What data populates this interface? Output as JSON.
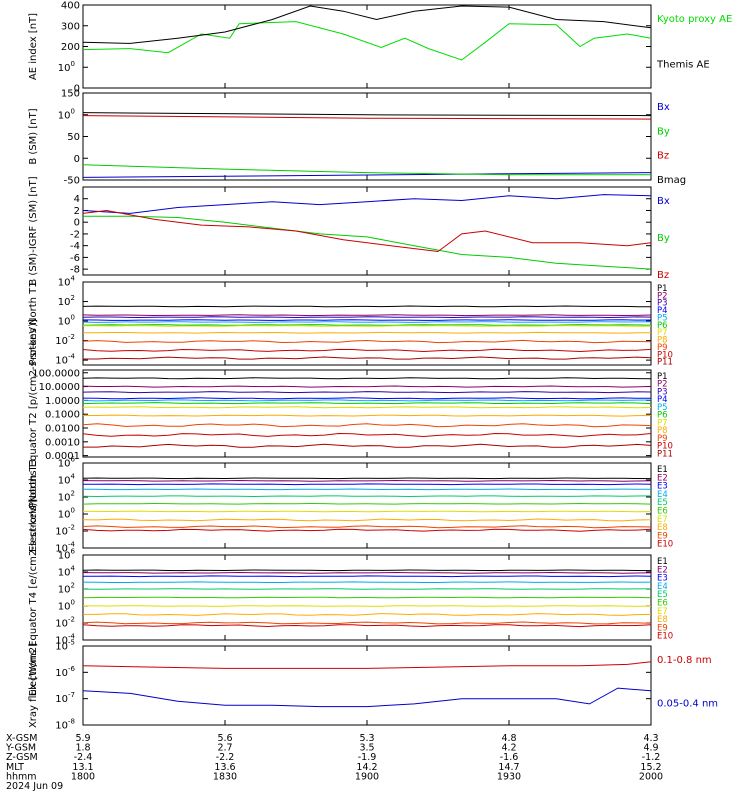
{
  "time_axis": {
    "start": "18:00",
    "end": "20:00",
    "date_label": "2024 Jun 09",
    "ticks": [
      "18:00",
      "18:30",
      "19:00",
      "19:30",
      "20:00"
    ]
  },
  "chart_data": [
    {
      "type": "line",
      "ylabel": "AE index [nT]",
      "ylim": [
        0,
        400
      ],
      "scale": "linear",
      "yticks": [
        "0",
        "100",
        "200",
        "300",
        "400"
      ],
      "series": [
        {
          "name": "Kyoto proxy AE",
          "color": "#00dd00",
          "t": [
            "18:00",
            "18:10",
            "18:18",
            "18:25",
            "18:31",
            "18:33",
            "18:45",
            "18:55",
            "19:03",
            "19:08",
            "19:13",
            "19:20",
            "19:25",
            "19:30",
            "19:40",
            "19:45",
            "19:48",
            "19:55",
            "20:00"
          ],
          "y": [
            185,
            190,
            170,
            260,
            240,
            310,
            320,
            260,
            195,
            240,
            190,
            135,
            220,
            310,
            305,
            200,
            240,
            260,
            240
          ]
        },
        {
          "name": "Themis AE",
          "color": "#000000",
          "t": [
            "18:00",
            "18:10",
            "18:20",
            "18:30",
            "18:40",
            "18:48",
            "18:55",
            "19:02",
            "19:10",
            "19:20",
            "19:30",
            "19:40",
            "19:50",
            "20:00"
          ],
          "y": [
            220,
            215,
            240,
            270,
            330,
            400,
            370,
            330,
            370,
            400,
            390,
            330,
            320,
            290
          ]
        }
      ]
    },
    {
      "type": "line",
      "ylabel": "B (SM) [nT]",
      "ylim": [
        -50,
        150
      ],
      "scale": "linear",
      "yticks": [
        "-50",
        "0",
        "50",
        "100",
        "150"
      ],
      "series": [
        {
          "name": "Bx",
          "color": "#0000cc",
          "t": [
            "18:00",
            "20:00"
          ],
          "y": [
            -44,
            -33
          ]
        },
        {
          "name": "By",
          "color": "#00cc00",
          "t": [
            "18:00",
            "18:30",
            "19:00",
            "19:30",
            "20:00"
          ],
          "y": [
            -15,
            -25,
            -33,
            -38,
            -38
          ]
        },
        {
          "name": "Bz",
          "color": "#cc0000",
          "t": [
            "18:00",
            "19:00",
            "20:00"
          ],
          "y": [
            98,
            92,
            90
          ]
        },
        {
          "name": "Bmag",
          "color": "#000000",
          "t": [
            "18:00",
            "19:00",
            "20:00"
          ],
          "y": [
            105,
            100,
            98
          ]
        }
      ]
    },
    {
      "type": "line",
      "ylabel": "B (SM)-IGRF (SM) [nT]",
      "ylim": [
        -9,
        6
      ],
      "scale": "linear",
      "yticks": [
        "-8",
        "-6",
        "-4",
        "-2",
        "0",
        "2",
        "4"
      ],
      "series": [
        {
          "name": "Bx",
          "color": "#0000cc",
          "t": [
            "18:00",
            "18:10",
            "18:20",
            "18:30",
            "18:40",
            "18:50",
            "19:00",
            "19:10",
            "19:20",
            "19:30",
            "19:40",
            "19:50",
            "20:00"
          ],
          "y": [
            2,
            1.5,
            2.5,
            3,
            3.5,
            3,
            3.5,
            4,
            3.7,
            4.5,
            4,
            4.7,
            4.5
          ]
        },
        {
          "name": "By",
          "color": "#00cc00",
          "t": [
            "18:00",
            "18:10",
            "18:20",
            "18:30",
            "18:40",
            "18:50",
            "19:00",
            "19:10",
            "19:20",
            "19:30",
            "19:40",
            "19:50",
            "20:00"
          ],
          "y": [
            1,
            1,
            0.8,
            0,
            -1,
            -2,
            -2.5,
            -4,
            -5.5,
            -6,
            -7,
            -7.5,
            -8
          ]
        },
        {
          "name": "Bz",
          "color": "#cc0000",
          "t": [
            "18:00",
            "18:05",
            "18:15",
            "18:25",
            "18:35",
            "18:45",
            "18:55",
            "19:05",
            "19:15",
            "19:20",
            "19:25",
            "19:35",
            "19:45",
            "19:55",
            "20:00"
          ],
          "y": [
            1.5,
            2,
            0.5,
            -0.5,
            -0.8,
            -1.5,
            -3,
            -4,
            -5,
            -2,
            -1.5,
            -3.5,
            -3.5,
            -4,
            -3.5
          ]
        }
      ]
    },
    {
      "type": "line",
      "ylabel": "Protons North T1",
      "ylim": [
        -4.5,
        4
      ],
      "scale": "log10",
      "yticks": [
        "10-4",
        "10-2",
        "100",
        "102",
        "104"
      ],
      "series": [
        {
          "name": "P1",
          "color": "#000000",
          "y": [
            1.5
          ]
        },
        {
          "name": "P2",
          "color": "#880066",
          "y": [
            0.6
          ]
        },
        {
          "name": "P3",
          "color": "#3300aa",
          "y": [
            0.4
          ]
        },
        {
          "name": "P4",
          "color": "#0000ff",
          "y": [
            0.1
          ]
        },
        {
          "name": "P5",
          "color": "#00aaee",
          "y": [
            -0.1
          ]
        },
        {
          "name": "P6",
          "color": "#00cc00",
          "y": [
            -0.4
          ]
        },
        {
          "name": "P7",
          "color": "#dddd00",
          "y": [
            -0.5
          ]
        },
        {
          "name": "P8",
          "color": "#ffaa00",
          "y": [
            -1.2
          ]
        },
        {
          "name": "P9",
          "color": "#ee4400",
          "y": [
            -2.1
          ]
        },
        {
          "name": "P10",
          "color": "#cc0000",
          "y": [
            -3.0
          ]
        },
        {
          "name": "P11",
          "color": "#aa0000",
          "y": [
            -3.8
          ]
        }
      ]
    },
    {
      "type": "line",
      "ylabel": "Protons Equator T2 [p/(cm2-s-sr-keV)]",
      "ylim": [
        -4.1,
        2.2
      ],
      "scale": "log10",
      "yticks": [
        "0.0001",
        "0.0010",
        "0.0100",
        "0.1000",
        "1.0000",
        "10.0000",
        "100.0000"
      ],
      "series": [
        {
          "name": "P1",
          "color": "#000000",
          "y": [
            1.6
          ]
        },
        {
          "name": "P2",
          "color": "#880066",
          "y": [
            1.0
          ]
        },
        {
          "name": "P3",
          "color": "#3300aa",
          "y": [
            0.6
          ]
        },
        {
          "name": "P4",
          "color": "#0000ff",
          "y": [
            0.15
          ]
        },
        {
          "name": "P5",
          "color": "#00aaee",
          "y": [
            0.0
          ]
        },
        {
          "name": "P6",
          "color": "#00cc00",
          "y": [
            -0.2
          ]
        },
        {
          "name": "P7",
          "color": "#dddd00",
          "y": [
            -0.5
          ]
        },
        {
          "name": "P8",
          "color": "#ffaa00",
          "y": [
            -1.1
          ]
        },
        {
          "name": "P9",
          "color": "#ee4400",
          "y": [
            -1.8
          ]
        },
        {
          "name": "P10",
          "color": "#cc0000",
          "y": [
            -2.5
          ]
        },
        {
          "name": "P11",
          "color": "#aa0000",
          "y": [
            -3.3
          ]
        }
      ]
    },
    {
      "type": "line",
      "ylabel": "Electrons North T3",
      "ylim": [
        -4,
        6
      ],
      "scale": "log10",
      "yticks": [
        "10-4",
        "10-2",
        "100",
        "102",
        "104",
        "106"
      ],
      "series": [
        {
          "name": "E1",
          "color": "#000000",
          "y": [
            4.2
          ]
        },
        {
          "name": "E2",
          "color": "#880066",
          "y": [
            3.9
          ]
        },
        {
          "name": "E3",
          "color": "#0000ff",
          "y": [
            3.5
          ]
        },
        {
          "name": "E4",
          "color": "#00aaee",
          "y": [
            2.9
          ]
        },
        {
          "name": "E5",
          "color": "#00cc66",
          "y": [
            2.1
          ]
        },
        {
          "name": "E6",
          "color": "#33cc00",
          "y": [
            1.2
          ]
        },
        {
          "name": "E7",
          "color": "#dddd00",
          "y": [
            0.3
          ]
        },
        {
          "name": "E8",
          "color": "#ffaa00",
          "y": [
            -0.7
          ]
        },
        {
          "name": "E9",
          "color": "#ee4400",
          "y": [
            -1.5
          ]
        },
        {
          "name": "E10",
          "color": "#cc0000",
          "y": [
            -1.9
          ]
        }
      ]
    },
    {
      "type": "line",
      "ylabel": "Electrons Equator T4 [e/(cm2-s-sr-keV)]",
      "ylim": [
        -4,
        6
      ],
      "scale": "log10",
      "yticks": [
        "10-4",
        "10-2",
        "100",
        "102",
        "104",
        "106"
      ],
      "series": [
        {
          "name": "E1",
          "color": "#000000",
          "y": [
            4.2
          ]
        },
        {
          "name": "E2",
          "color": "#880066",
          "y": [
            3.9
          ]
        },
        {
          "name": "E3",
          "color": "#0000ff",
          "y": [
            3.5
          ]
        },
        {
          "name": "E4",
          "color": "#00aaee",
          "y": [
            2.8
          ]
        },
        {
          "name": "E5",
          "color": "#00cc66",
          "y": [
            2.0
          ]
        },
        {
          "name": "E6",
          "color": "#33cc00",
          "y": [
            1.0
          ]
        },
        {
          "name": "E7",
          "color": "#dddd00",
          "y": [
            0.0
          ]
        },
        {
          "name": "E8",
          "color": "#ffaa00",
          "y": [
            -1.0
          ]
        },
        {
          "name": "E9",
          "color": "#ee4400",
          "y": [
            -2.0
          ]
        },
        {
          "name": "E10",
          "color": "#cc0000",
          "y": [
            -2.3
          ]
        }
      ]
    },
    {
      "type": "line",
      "ylabel": "Xray flux [W/m2]",
      "ylim": [
        -8,
        -5
      ],
      "scale": "log10",
      "yticks": [
        "10-8",
        "10-7",
        "10-6",
        "10-5"
      ],
      "series": [
        {
          "name": "0.1-0.8 nm",
          "color": "#cc0000",
          "t": [
            "18:00",
            "18:15",
            "18:30",
            "18:45",
            "19:00",
            "19:15",
            "19:30",
            "19:45",
            "19:55",
            "20:00"
          ],
          "y": [
            -5.75,
            -5.8,
            -5.85,
            -5.85,
            -5.85,
            -5.8,
            -5.75,
            -5.75,
            -5.7,
            -5.6
          ]
        },
        {
          "name": "0.05-0.4 nm",
          "color": "#0000cc",
          "t": [
            "18:00",
            "18:10",
            "18:20",
            "18:30",
            "18:40",
            "18:50",
            "19:00",
            "19:10",
            "19:20",
            "19:30",
            "19:40",
            "19:47",
            "19:53",
            "20:00"
          ],
          "y": [
            -6.7,
            -6.8,
            -7.1,
            -7.25,
            -7.25,
            -7.3,
            -7.3,
            -7.2,
            -7.0,
            -7.0,
            -7.0,
            -7.2,
            -6.6,
            -6.7
          ]
        }
      ]
    }
  ],
  "ephemeris": {
    "rows": [
      {
        "label": "X-GSM",
        "values": [
          "5.9",
          "5.6",
          "5.3",
          "4.8",
          "4.3"
        ]
      },
      {
        "label": "Y-GSM",
        "values": [
          "1.8",
          "2.7",
          "3.5",
          "4.2",
          "4.9"
        ]
      },
      {
        "label": "Z-GSM",
        "values": [
          "-2.4",
          "-2.2",
          "-1.9",
          "-1.6",
          "-1.2"
        ]
      },
      {
        "label": "MLT",
        "values": [
          "13.1",
          "13.6",
          "14.2",
          "14.7",
          "15.2"
        ]
      },
      {
        "label": "hhmm",
        "values": [
          "1800",
          "1830",
          "1900",
          "1930",
          "2000"
        ]
      }
    ]
  }
}
